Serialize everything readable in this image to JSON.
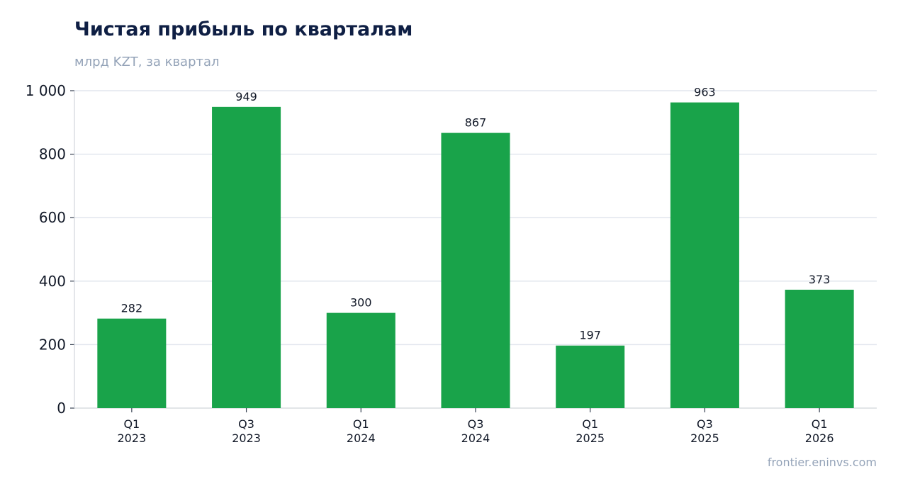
{
  "chart_data": {
    "type": "bar",
    "title": "Чистая прибыль по кварталам",
    "subtitle": "млрд KZT, за квартал",
    "source": "frontier.eninvs.com",
    "categories": [
      "Q1\n2023",
      "Q3\n2023",
      "Q1\n2024",
      "Q3\n2024",
      "Q1\n2025",
      "Q3\n2025",
      "Q1\n2026"
    ],
    "values": [
      282,
      949,
      300,
      867,
      197,
      963,
      373
    ],
    "data_labels": [
      "282",
      "949",
      "300",
      "867",
      "197",
      "963",
      "373"
    ],
    "ylim": [
      0,
      1000
    ],
    "yticks": [
      0,
      200,
      400,
      600,
      800,
      1000
    ],
    "ytick_labels": [
      "0",
      "200",
      "400",
      "600",
      "800",
      "1 000"
    ],
    "grid": true,
    "colors": {
      "bar": "#19a34a",
      "grid": "#e2e6ee",
      "axis": "#d1d5db"
    }
  }
}
